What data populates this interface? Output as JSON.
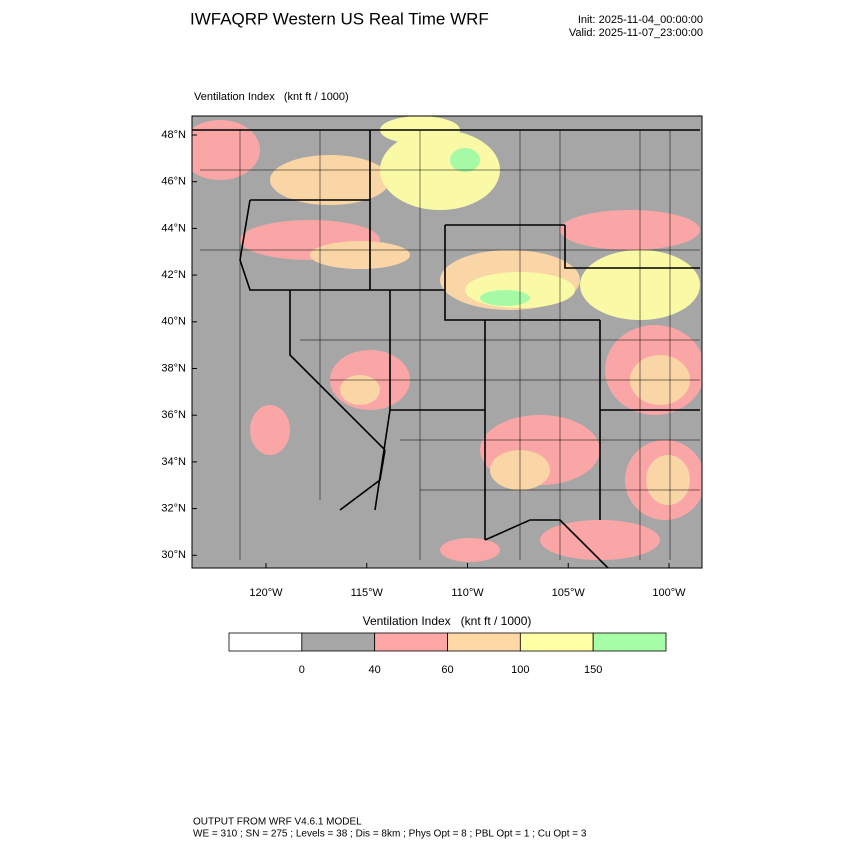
{
  "header": {
    "title": "IWFAQRP Western US Real Time WRF",
    "init": "Init: 2025-11-04_00:00:00",
    "valid": "Valid: 2025-11-07_23:00:00"
  },
  "map": {
    "title": "Ventilation Index   (knt ft / 1000)",
    "lat_labels": [
      "48°N",
      "46°N",
      "44°N",
      "42°N",
      "40°N",
      "38°N",
      "36°N",
      "34°N",
      "32°N",
      "30°N"
    ],
    "lon_labels": [
      "120°W",
      "115°W",
      "110°W",
      "105°W",
      "100°W"
    ]
  },
  "colorbar": {
    "title": "Ventilation Index   (knt ft / 1000)",
    "colors": [
      "#ffffff",
      "#a6a6a6",
      "#ffa6a6",
      "#ffd8a6",
      "#ffffa6",
      "#a6ffa6"
    ],
    "levels": [
      0,
      40,
      60,
      100,
      150
    ]
  },
  "footer": {
    "line1": "OUTPUT FROM WRF V4.6.1 MODEL",
    "line2": "WE = 310 ; SN = 275 ; Levels = 38 ; Dis = 8km ; Phys Opt = 8 ; PBL Opt = 1 ; Cu Opt = 3"
  }
}
